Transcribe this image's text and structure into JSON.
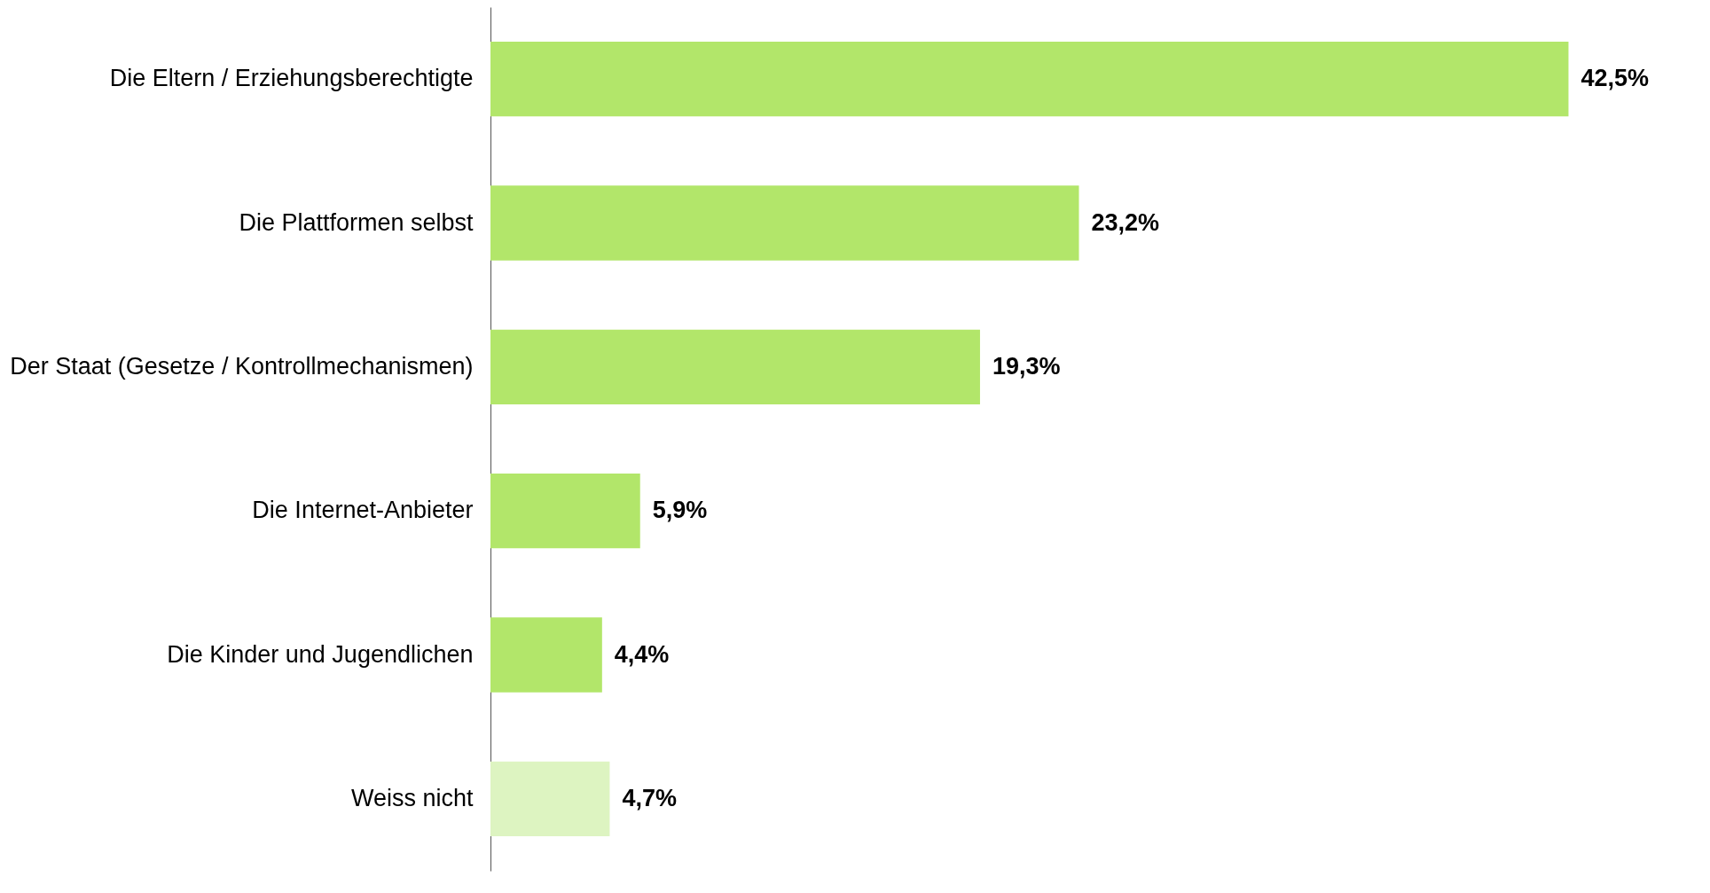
{
  "chart_data": {
    "type": "bar",
    "orientation": "horizontal",
    "categories": [
      "Die Eltern / Erziehungsberechtigte",
      "Die Plattformen selbst",
      "Der Staat (Gesetze / Kontrollmechanismen)",
      "Die Internet-Anbieter",
      "Die Kinder und Jugendlichen",
      "Weiss nicht"
    ],
    "values": [
      42.5,
      23.2,
      19.3,
      5.9,
      4.4,
      4.7
    ],
    "colors": [
      "#b2e66a",
      "#b2e66a",
      "#b2e66a",
      "#b2e66a",
      "#b2e66a",
      "#ddf4c1"
    ],
    "value_labels": [
      "42,5%",
      "23,2%",
      "19,3%",
      "5,9%",
      "4,4%",
      "4,7%"
    ]
  }
}
